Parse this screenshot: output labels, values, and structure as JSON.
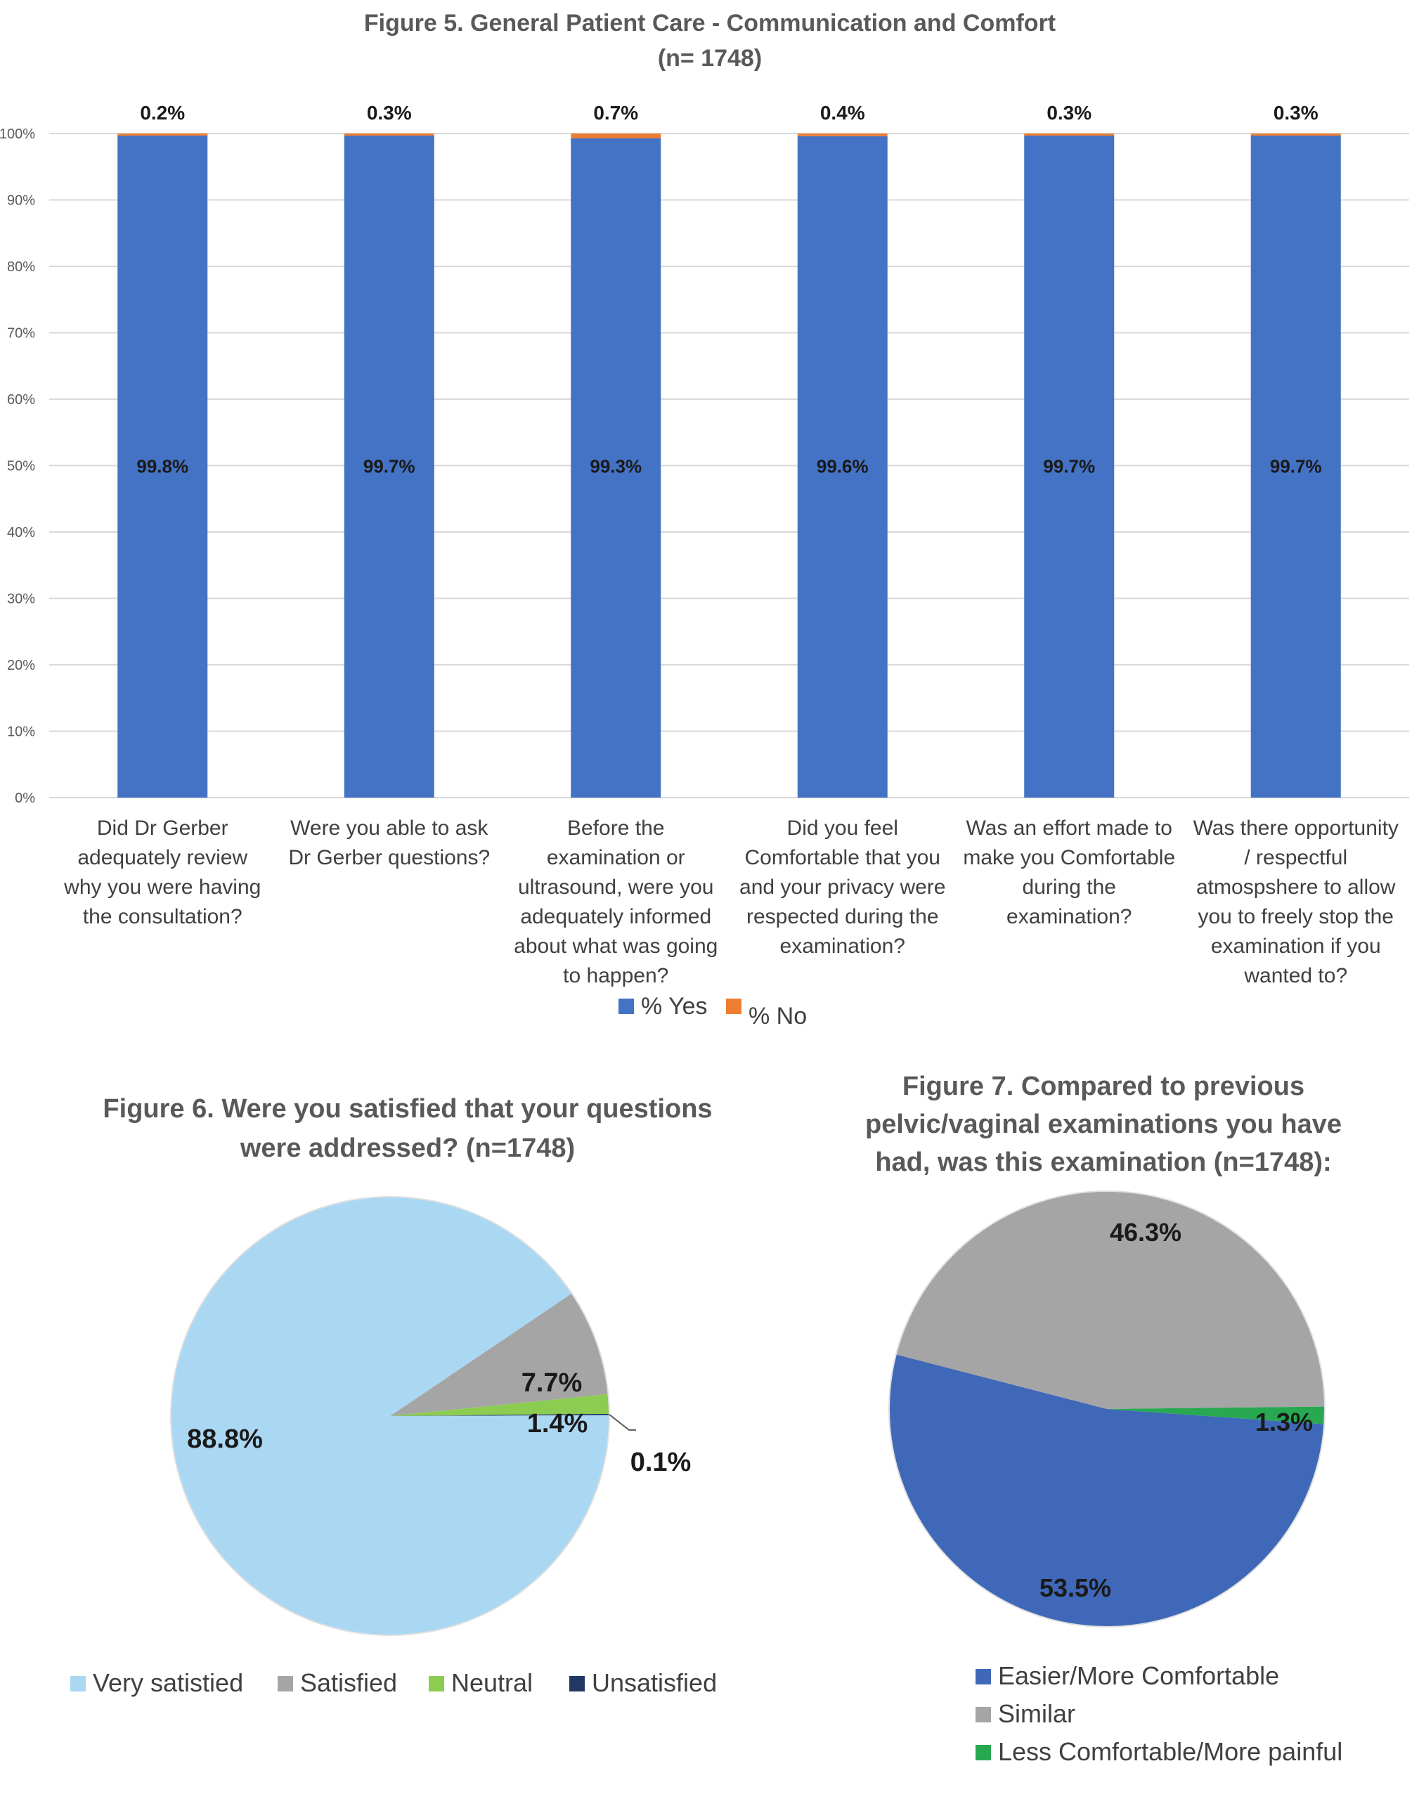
{
  "chart_data": [
    {
      "type": "bar",
      "stacked": true,
      "title": "Figure 5. General Patient Care - Communication and Comfort",
      "subtitle": "(n= 1748)",
      "categories": [
        [
          "Did Dr Gerber",
          "adequately review",
          "why you were having",
          "the consultation?"
        ],
        [
          "Were you able to ask",
          "Dr Gerber questions?"
        ],
        [
          "Before the",
          "examination or",
          "ultrasound, were you",
          "adequately informed",
          "about what was going",
          "to happen?"
        ],
        [
          "Did you feel",
          "Comfortable that you",
          "and your privacy were",
          "respected during the",
          "examination?"
        ],
        [
          "Was an effort made to",
          "make you Comfortable",
          "during the",
          "examination?"
        ],
        [
          "Was there opportunity",
          "/ respectful",
          "atmospshere to allow",
          "you to freely stop the",
          "examination if you",
          "wanted to?"
        ]
      ],
      "series": [
        {
          "name": "% Yes",
          "color": "#4472c4",
          "values": [
            99.8,
            99.7,
            99.3,
            99.6,
            99.7,
            99.7
          ],
          "labels": [
            "99.8%",
            "99.7%",
            "99.3%",
            "99.6%",
            "99.7%",
            "99.7%"
          ]
        },
        {
          "name": "% No",
          "color": "#ed7d31",
          "values": [
            0.2,
            0.3,
            0.7,
            0.4,
            0.3,
            0.3
          ],
          "labels": [
            "0.2%",
            "0.3%",
            "0.7%",
            "0.4%",
            "0.3%",
            "0.3%"
          ]
        }
      ],
      "ylim": [
        0,
        100
      ],
      "yticks": [
        "0%",
        "10%",
        "20%",
        "30%",
        "40%",
        "50%",
        "60%",
        "70%",
        "80%",
        "90%",
        "100%"
      ],
      "grid": true,
      "legend": "bottom"
    },
    {
      "type": "pie",
      "title": [
        "Figure 6. Were you satisfied that your questions",
        "were addressed? (n=1748)"
      ],
      "slices": [
        {
          "name": "Very satistied",
          "value": 88.8,
          "label": "88.8%",
          "color": "#aad8f2"
        },
        {
          "name": "Satisfied",
          "value": 7.7,
          "label": "7.7%",
          "color": "#a5a5a5"
        },
        {
          "name": "Neutral",
          "value": 1.4,
          "label": "1.4%",
          "color": "#8ccc50"
        },
        {
          "name": "Unsatisfied",
          "value": 0.1,
          "label": "0.1%",
          "color": "#1f3864"
        }
      ],
      "legend": "bottom"
    },
    {
      "type": "pie",
      "title": [
        "Figure 7. Compared to previous",
        "pelvic/vaginal examinations you have",
        "had, was this examination (n=1748):"
      ],
      "slices": [
        {
          "name": "Easier/More Comfortable",
          "value": 53.5,
          "label": "53.5%",
          "color": "#4068b8"
        },
        {
          "name": "Similar",
          "value": 46.3,
          "label": "46.3%",
          "color": "#a5a5a5"
        },
        {
          "name": "Less Comfortable/More painful",
          "value": 1.3,
          "label": "1.3%",
          "color": "#28a850"
        }
      ],
      "legend": "bottom"
    }
  ]
}
